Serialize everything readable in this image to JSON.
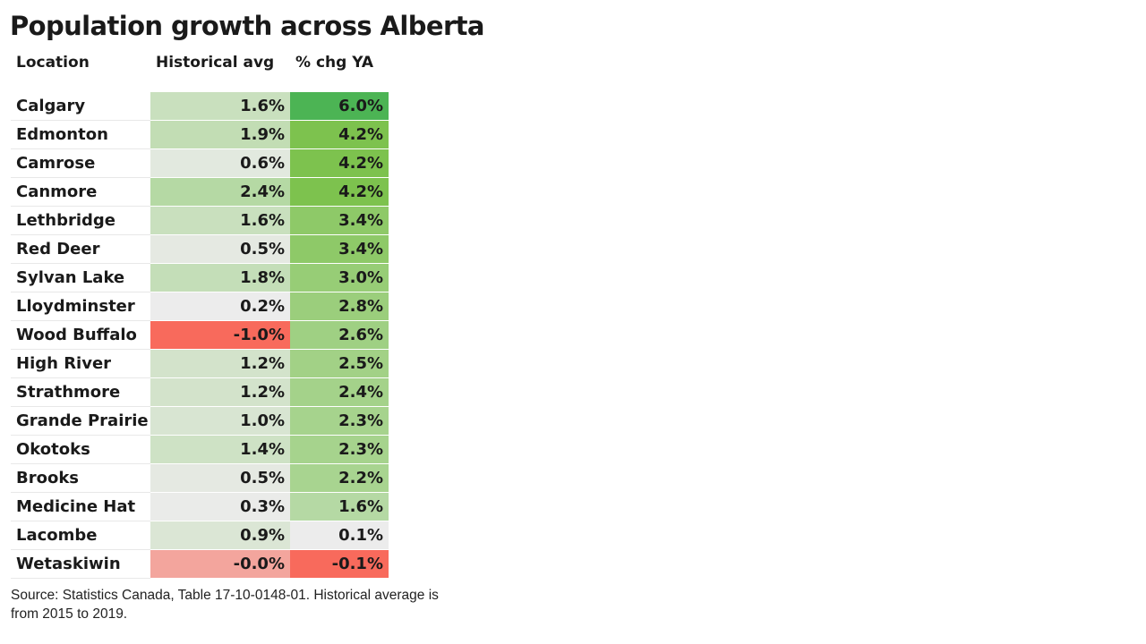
{
  "chart_data": {
    "type": "table",
    "title": "Population growth across Alberta",
    "columns": [
      "Location",
      "Historical avg",
      "% chg YA"
    ],
    "rows": [
      {
        "location": "Calgary",
        "historical": "1.6%",
        "chg": "6.0%",
        "hv": 1.6,
        "cv": 6.0
      },
      {
        "location": "Edmonton",
        "historical": "1.9%",
        "chg": "4.2%",
        "hv": 1.9,
        "cv": 4.2
      },
      {
        "location": "Camrose",
        "historical": "0.6%",
        "chg": "4.2%",
        "hv": 0.6,
        "cv": 4.2
      },
      {
        "location": "Canmore",
        "historical": "2.4%",
        "chg": "4.2%",
        "hv": 2.4,
        "cv": 4.2
      },
      {
        "location": "Lethbridge",
        "historical": "1.6%",
        "chg": "3.4%",
        "hv": 1.6,
        "cv": 3.4
      },
      {
        "location": "Red Deer",
        "historical": "0.5%",
        "chg": "3.4%",
        "hv": 0.5,
        "cv": 3.4
      },
      {
        "location": "Sylvan Lake",
        "historical": "1.8%",
        "chg": "3.0%",
        "hv": 1.8,
        "cv": 3.0
      },
      {
        "location": "Lloydminster",
        "historical": "0.2%",
        "chg": "2.8%",
        "hv": 0.2,
        "cv": 2.8
      },
      {
        "location": "Wood Buffalo",
        "historical": "-1.0%",
        "chg": "2.6%",
        "hv": -1.0,
        "cv": 2.6
      },
      {
        "location": "High River",
        "historical": "1.2%",
        "chg": "2.5%",
        "hv": 1.2,
        "cv": 2.5
      },
      {
        "location": "Strathmore",
        "historical": "1.2%",
        "chg": "2.4%",
        "hv": 1.2,
        "cv": 2.4
      },
      {
        "location": "Grande Prairie",
        "historical": "1.0%",
        "chg": "2.3%",
        "hv": 1.0,
        "cv": 2.3
      },
      {
        "location": "Okotoks",
        "historical": "1.4%",
        "chg": "2.3%",
        "hv": 1.4,
        "cv": 2.3
      },
      {
        "location": "Brooks",
        "historical": "0.5%",
        "chg": "2.2%",
        "hv": 0.5,
        "cv": 2.2
      },
      {
        "location": "Medicine Hat",
        "historical": "0.3%",
        "chg": "1.6%",
        "hv": 0.3,
        "cv": 1.6
      },
      {
        "location": "Lacombe",
        "historical": "0.9%",
        "chg": "0.1%",
        "hv": 0.9,
        "cv": 0.1
      },
      {
        "location": "Wetaskiwin",
        "historical": "-0.0%",
        "chg": "-0.1%",
        "hv": -0.04,
        "cv": -0.1
      }
    ],
    "colors": {
      "negative": "#f86a5c",
      "neutral": "#ececec",
      "positive_light": "#b5d9a4",
      "positive_strong": "#4cb454",
      "positive_mid": "#7dc24e"
    }
  },
  "source": "Source: Statistics Canada, Table 17-10-0148-01. Historical average is from 2015 to 2019."
}
